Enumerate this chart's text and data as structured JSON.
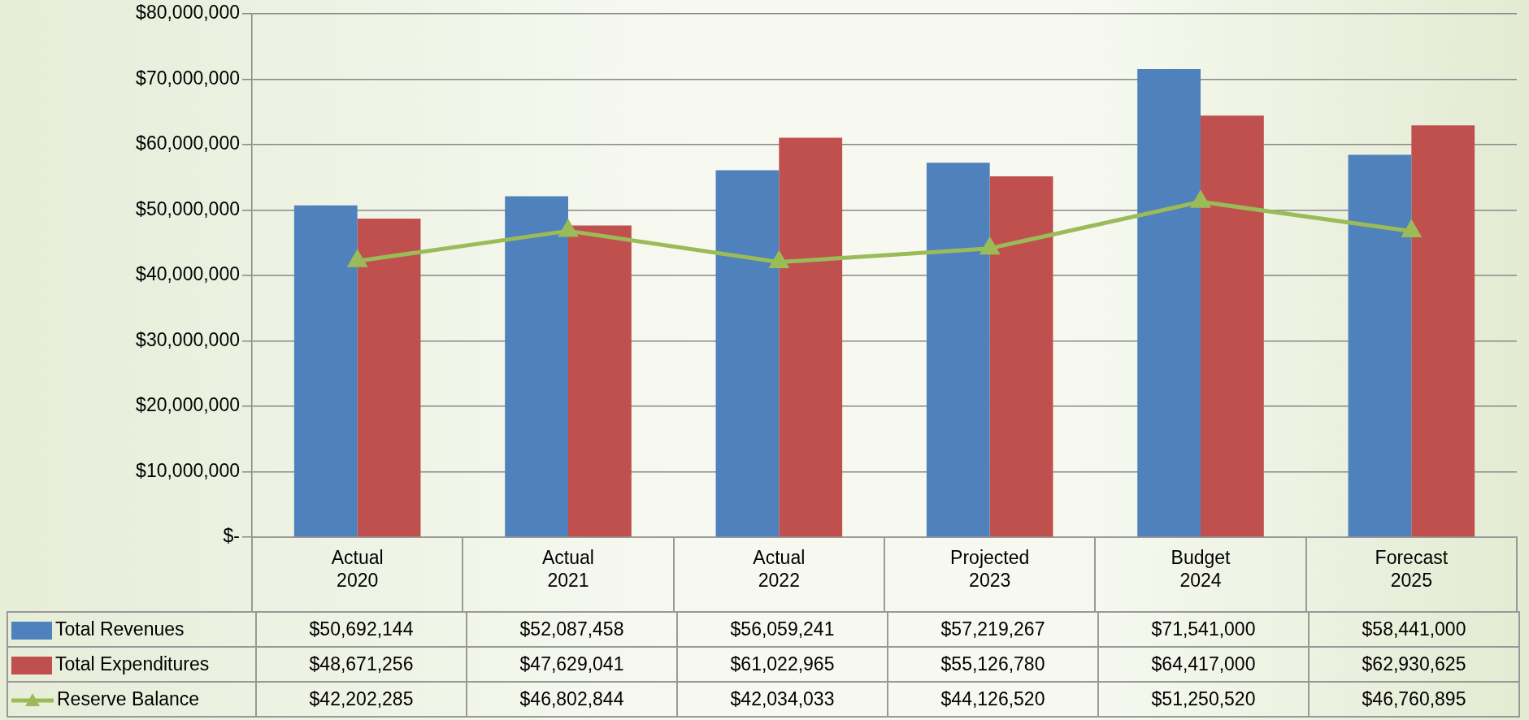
{
  "chart_data": {
    "type": "bar",
    "categories": [
      "Actual 2020",
      "Actual 2021",
      "Actual 2022",
      "Projected 2023",
      "Budget 2024",
      "Forecast 2025"
    ],
    "series": [
      {
        "name": "Total Revenues",
        "color": "#4f81bd",
        "values": [
          50692144,
          52087458,
          56059241,
          57219267,
          71541000,
          58441000
        ],
        "value_labels": [
          "$50,692,144",
          "$52,087,458",
          "$56,059,241",
          "$57,219,267",
          "$71,541,000",
          "$58,441,000"
        ]
      },
      {
        "name": "Total Expenditures",
        "color": "#c0504d",
        "values": [
          48671256,
          47629041,
          61022965,
          55126780,
          64417000,
          62930625
        ],
        "value_labels": [
          "$48,671,256",
          "$47,629,041",
          "$61,022,965",
          "$55,126,780",
          "$64,417,000",
          "$62,930,625"
        ]
      },
      {
        "name": "Reserve Balance",
        "type": "line",
        "color": "#9bbb59",
        "marker": "triangle",
        "values": [
          42202285,
          46802844,
          42034033,
          44126520,
          51250520,
          46760895
        ],
        "value_labels": [
          "$42,202,285",
          "$46,802,844",
          "$42,034,033",
          "$44,126,520",
          "$51,250,520",
          "$46,760,895"
        ]
      }
    ],
    "ylim": [
      0,
      80000000
    ],
    "yticks": [
      {
        "value": 0,
        "label": "$-"
      },
      {
        "value": 10000000,
        "label": "$10,000,000"
      },
      {
        "value": 20000000,
        "label": "$20,000,000"
      },
      {
        "value": 30000000,
        "label": "$30,000,000"
      },
      {
        "value": 40000000,
        "label": "$40,000,000"
      },
      {
        "value": 50000000,
        "label": "$50,000,000"
      },
      {
        "value": 60000000,
        "label": "$60,000,000"
      },
      {
        "value": 70000000,
        "label": "$70,000,000"
      },
      {
        "value": 80000000,
        "label": "$80,000,000"
      }
    ],
    "grid": "y",
    "legend": "bottom"
  }
}
